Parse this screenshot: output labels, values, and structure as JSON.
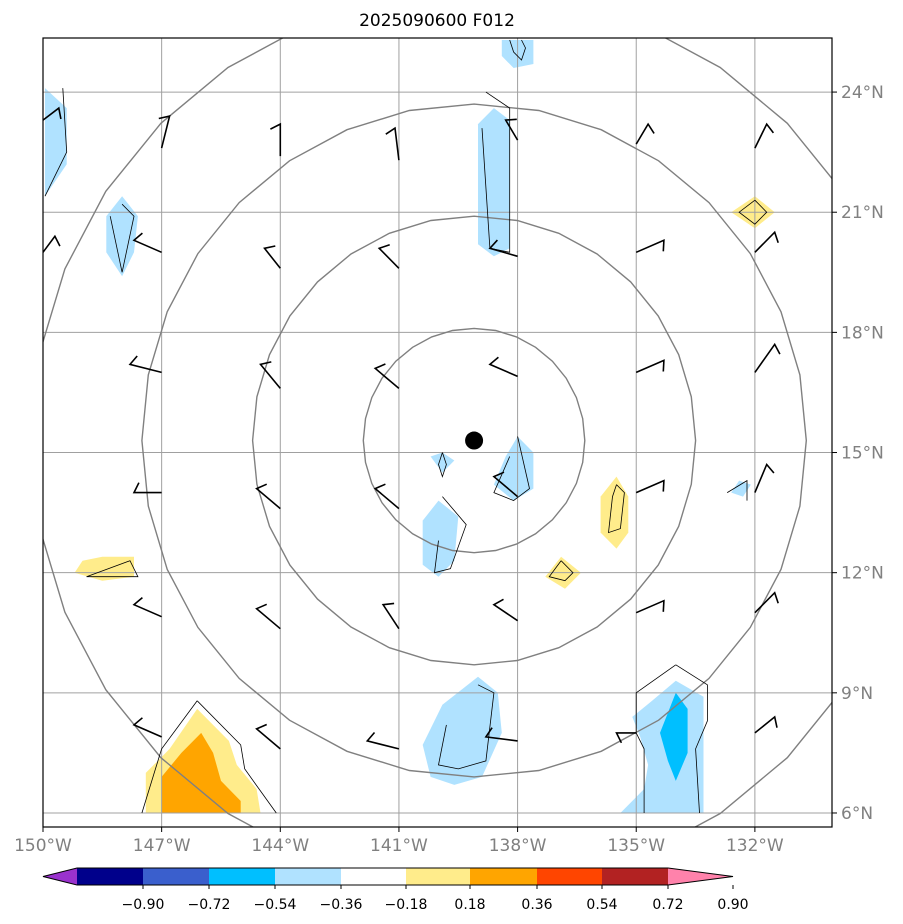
{
  "title": "2025090600 F012",
  "center_marker": {
    "lon": -139.1,
    "lat": 15.3
  },
  "x_ticks": [
    {
      "lon": -150,
      "label": "150°W"
    },
    {
      "lon": -147,
      "label": "147°W"
    },
    {
      "lon": -144,
      "label": "144°W"
    },
    {
      "lon": -141,
      "label": "141°W"
    },
    {
      "lon": -138,
      "label": "138°W"
    },
    {
      "lon": -135,
      "label": "135°W"
    },
    {
      "lon": -132,
      "label": "132°W"
    }
  ],
  "y_ticks": [
    {
      "lat": 24,
      "label": "24°N"
    },
    {
      "lat": 21,
      "label": "21°N"
    },
    {
      "lat": 18,
      "label": "18°N"
    },
    {
      "lat": 15,
      "label": "15°N"
    },
    {
      "lat": 12,
      "label": "12°N"
    },
    {
      "lat": 9,
      "label": "9°N"
    },
    {
      "lat": 6,
      "label": "6°N"
    }
  ],
  "range_rings_deg": [
    2.8,
    5.6,
    8.4,
    11.2
  ],
  "colorbar": {
    "colors": [
      "#9a32cd",
      "#00008b",
      "#3a5fcd",
      "#00bfff",
      "#b0e2ff",
      "#ffffff",
      "#ffec8b",
      "#ffa500",
      "#ff4500",
      "#b22222",
      "#ff82ab"
    ],
    "tick_labels": [
      "−0.90",
      "−0.72",
      "−0.54",
      "−0.36",
      "−0.18",
      "0.18",
      "0.36",
      "0.54",
      "0.72",
      "0.90"
    ]
  },
  "field_regions": [
    {
      "color": "#b0e2ff",
      "pts": [
        [
          -149.95,
          24.1
        ],
        [
          -149.4,
          23.6
        ],
        [
          -149.4,
          22.2
        ],
        [
          -149.95,
          21.4
        ]
      ]
    },
    {
      "color": "#b0e2ff",
      "pts": [
        [
          -148.0,
          21.4
        ],
        [
          -147.6,
          20.9
        ],
        [
          -147.7,
          20.0
        ],
        [
          -148.0,
          19.4
        ],
        [
          -148.4,
          20.0
        ],
        [
          -148.4,
          20.9
        ]
      ]
    },
    {
      "color": "#b0e2ff",
      "pts": [
        [
          -138.6,
          23.6
        ],
        [
          -138.2,
          23.3
        ],
        [
          -138.2,
          20.1
        ],
        [
          -138.6,
          19.9
        ],
        [
          -139.0,
          20.2
        ],
        [
          -139.0,
          23.2
        ]
      ]
    },
    {
      "color": "#b0e2ff",
      "pts": [
        [
          -138.4,
          25.3
        ],
        [
          -137.6,
          25.3
        ],
        [
          -137.6,
          24.7
        ],
        [
          -138.1,
          24.6
        ],
        [
          -138.4,
          24.9
        ]
      ]
    },
    {
      "color": "#b0e2ff",
      "pts": [
        [
          -140.2,
          14.9
        ],
        [
          -139.9,
          15.0
        ],
        [
          -139.6,
          14.8
        ],
        [
          -139.9,
          14.5
        ]
      ]
    },
    {
      "color": "#b0e2ff",
      "pts": [
        [
          -138.0,
          15.4
        ],
        [
          -137.6,
          15.0
        ],
        [
          -137.6,
          14.1
        ],
        [
          -138.1,
          13.8
        ],
        [
          -138.6,
          14.2
        ],
        [
          -138.3,
          14.9
        ]
      ]
    },
    {
      "color": "#b0e2ff",
      "pts": [
        [
          -140.0,
          13.8
        ],
        [
          -139.5,
          13.4
        ],
        [
          -139.6,
          12.3
        ],
        [
          -140.0,
          11.9
        ],
        [
          -140.4,
          12.2
        ],
        [
          -140.4,
          13.3
        ]
      ]
    },
    {
      "color": "#b0e2ff",
      "pts": [
        [
          -139.0,
          9.4
        ],
        [
          -138.5,
          9.0
        ],
        [
          -138.4,
          8.0
        ],
        [
          -138.9,
          6.9
        ],
        [
          -139.6,
          6.7
        ],
        [
          -140.2,
          6.9
        ],
        [
          -140.4,
          7.7
        ],
        [
          -139.9,
          8.7
        ]
      ]
    },
    {
      "color": "#b0e2ff",
      "pts": [
        [
          -132.4,
          14.3
        ],
        [
          -132.1,
          14.2
        ],
        [
          -132.3,
          13.9
        ],
        [
          -132.6,
          14.0
        ]
      ]
    },
    {
      "color": "#b0e2ff",
      "pts": [
        [
          -134.0,
          9.3
        ],
        [
          -133.3,
          8.9
        ],
        [
          -133.3,
          6.0
        ],
        [
          -135.4,
          6.0
        ],
        [
          -134.8,
          6.6
        ],
        [
          -134.7,
          7.2
        ],
        [
          -134.9,
          7.9
        ],
        [
          -135.1,
          8.4
        ],
        [
          -134.6,
          8.8
        ]
      ]
    },
    {
      "color": "#00bfff",
      "pts": [
        [
          -134.0,
          9.0
        ],
        [
          -133.7,
          8.6
        ],
        [
          -133.7,
          7.5
        ],
        [
          -134.0,
          6.8
        ],
        [
          -134.2,
          7.3
        ],
        [
          -134.4,
          8.0
        ]
      ]
    },
    {
      "color": "#ffec8b",
      "pts": [
        [
          -132.0,
          21.4
        ],
        [
          -131.5,
          21.0
        ],
        [
          -132.0,
          20.6
        ],
        [
          -132.6,
          21.0
        ]
      ]
    },
    {
      "color": "#ffec8b",
      "pts": [
        [
          -135.5,
          14.4
        ],
        [
          -135.2,
          13.9
        ],
        [
          -135.2,
          13.0
        ],
        [
          -135.5,
          12.6
        ],
        [
          -135.9,
          13.0
        ],
        [
          -135.9,
          13.9
        ]
      ]
    },
    {
      "color": "#ffec8b",
      "pts": [
        [
          -136.9,
          12.4
        ],
        [
          -136.4,
          12.0
        ],
        [
          -136.8,
          11.6
        ],
        [
          -137.3,
          11.9
        ]
      ]
    },
    {
      "color": "#ffec8b",
      "pts": [
        [
          -148.5,
          12.4
        ],
        [
          -147.7,
          12.4
        ],
        [
          -147.7,
          11.9
        ],
        [
          -148.5,
          11.8
        ],
        [
          -149.2,
          12.0
        ],
        [
          -149.0,
          12.3
        ]
      ]
    },
    {
      "color": "#ffec8b",
      "pts": [
        [
          -146.1,
          8.6
        ],
        [
          -145.3,
          7.8
        ],
        [
          -145.1,
          7.2
        ],
        [
          -144.6,
          6.6
        ],
        [
          -144.5,
          6.0
        ],
        [
          -147.4,
          6.0
        ],
        [
          -147.4,
          7.0
        ],
        [
          -146.8,
          7.6
        ]
      ]
    },
    {
      "color": "#ffa500",
      "pts": [
        [
          -146.0,
          8.0
        ],
        [
          -145.7,
          7.5
        ],
        [
          -145.5,
          6.8
        ],
        [
          -145.0,
          6.3
        ],
        [
          -145.0,
          6.0
        ],
        [
          -147.0,
          6.0
        ],
        [
          -147.0,
          6.9
        ],
        [
          -146.5,
          7.5
        ]
      ]
    }
  ],
  "contour_lines": [
    [
      [
        -149.5,
        24.1
      ],
      [
        -149.4,
        22.5
      ],
      [
        -149.95,
        21.4
      ]
    ],
    [
      [
        -148.0,
        21.2
      ],
      [
        -147.7,
        20.9
      ],
      [
        -148.0,
        19.5
      ],
      [
        -148.3,
        20.9
      ]
    ],
    [
      [
        -138.8,
        24.0
      ],
      [
        -138.2,
        23.6
      ],
      [
        -138.2,
        20.0
      ],
      [
        -138.7,
        20.1
      ],
      [
        -138.9,
        23.1
      ]
    ],
    [
      [
        -137.9,
        25.3
      ],
      [
        -137.8,
        25.1
      ],
      [
        -137.9,
        24.8
      ],
      [
        -138.1,
        25.0
      ],
      [
        -138.2,
        25.3
      ]
    ],
    [
      [
        -139.9,
        15.0
      ],
      [
        -139.8,
        14.7
      ],
      [
        -139.9,
        14.4
      ],
      [
        -140.0,
        14.7
      ],
      [
        -139.9,
        15.0
      ]
    ],
    [
      [
        -138.0,
        15.4
      ],
      [
        -137.7,
        14.1
      ],
      [
        -138.1,
        13.8
      ],
      [
        -138.6,
        14.0
      ],
      [
        -138.2,
        14.9
      ]
    ],
    [
      [
        -139.9,
        13.9
      ],
      [
        -139.3,
        13.2
      ],
      [
        -139.7,
        12.1
      ],
      [
        -140.1,
        12.0
      ],
      [
        -140.0,
        12.8
      ]
    ],
    [
      [
        -139.0,
        9.2
      ],
      [
        -138.6,
        9.0
      ],
      [
        -138.8,
        7.3
      ],
      [
        -139.5,
        7.1
      ],
      [
        -140.0,
        7.2
      ],
      [
        -139.8,
        8.2
      ]
    ],
    [
      [
        -132.7,
        14.0
      ],
      [
        -132.2,
        14.3
      ],
      [
        -132.2,
        13.8
      ]
    ],
    [
      [
        -134.0,
        9.7
      ],
      [
        -133.2,
        9.2
      ],
      [
        -133.2,
        8.3
      ],
      [
        -133.5,
        7.6
      ],
      [
        -133.4,
        6.0
      ]
    ],
    [
      [
        -134.0,
        9.7
      ],
      [
        -135.0,
        9.0
      ],
      [
        -135.0,
        8.0
      ],
      [
        -134.8,
        7.6
      ],
      [
        -134.8,
        6.0
      ]
    ],
    [
      [
        -132.0,
        21.3
      ],
      [
        -131.7,
        21.0
      ],
      [
        -132.0,
        20.7
      ],
      [
        -132.4,
        21.0
      ],
      [
        -132.0,
        21.3
      ]
    ],
    [
      [
        -135.5,
        14.2
      ],
      [
        -135.3,
        14.0
      ],
      [
        -135.4,
        13.1
      ],
      [
        -135.7,
        13.0
      ],
      [
        -135.6,
        13.9
      ],
      [
        -135.5,
        14.2
      ]
    ],
    [
      [
        -136.9,
        12.3
      ],
      [
        -136.6,
        12.0
      ],
      [
        -136.8,
        11.8
      ],
      [
        -137.2,
        11.9
      ],
      [
        -136.9,
        12.3
      ]
    ],
    [
      [
        -148.9,
        11.9
      ],
      [
        -147.8,
        12.3
      ],
      [
        -147.6,
        11.9
      ],
      [
        -148.9,
        11.9
      ]
    ],
    [
      [
        -146.1,
        8.8
      ],
      [
        -145.0,
        7.7
      ],
      [
        -144.9,
        7.1
      ],
      [
        -144.1,
        6.0
      ]
    ],
    [
      [
        -146.1,
        8.8
      ],
      [
        -147.0,
        7.6
      ],
      [
        -147.5,
        6.0
      ]
    ]
  ],
  "wind_barbs": [
    {
      "lon": -150.0,
      "lat": 23.3,
      "dx": 0.4,
      "dy": 0.3,
      "side": 1
    },
    {
      "lon": -147.0,
      "lat": 22.6,
      "dx": 0.2,
      "dy": 0.8,
      "side": -1
    },
    {
      "lon": -144.0,
      "lat": 22.4,
      "dx": 0.0,
      "dy": 0.8,
      "side": -1
    },
    {
      "lon": -141.0,
      "lat": 22.3,
      "dx": -0.1,
      "dy": 0.8,
      "side": -1
    },
    {
      "lon": -138.0,
      "lat": 22.8,
      "dx": -0.3,
      "dy": 0.5,
      "side": 1
    },
    {
      "lon": -135.0,
      "lat": 22.7,
      "dx": 0.3,
      "dy": 0.5,
      "side": 1
    },
    {
      "lon": -132.0,
      "lat": 22.6,
      "dx": 0.3,
      "dy": 0.6,
      "side": 1
    },
    {
      "lon": -150.0,
      "lat": 20.0,
      "dx": 0.3,
      "dy": 0.4,
      "side": 1
    },
    {
      "lon": -147.0,
      "lat": 20.0,
      "dx": -0.7,
      "dy": 0.3,
      "side": 1
    },
    {
      "lon": -144.0,
      "lat": 19.6,
      "dx": -0.4,
      "dy": 0.5,
      "side": 1
    },
    {
      "lon": -141.0,
      "lat": 19.6,
      "dx": -0.5,
      "dy": 0.5,
      "side": 1
    },
    {
      "lon": -138.0,
      "lat": 19.9,
      "dx": -0.7,
      "dy": 0.2,
      "side": 1
    },
    {
      "lon": -135.0,
      "lat": 20.0,
      "dx": 0.7,
      "dy": 0.3,
      "side": 1
    },
    {
      "lon": -132.0,
      "lat": 20.0,
      "dx": 0.5,
      "dy": 0.5,
      "side": 1
    },
    {
      "lon": -150.0,
      "lat": 17.0,
      "dx": -0.5,
      "dy": 0.0,
      "side": 1
    },
    {
      "lon": -147.0,
      "lat": 17.0,
      "dx": -0.8,
      "dy": 0.2,
      "side": 1
    },
    {
      "lon": -144.0,
      "lat": 16.6,
      "dx": -0.5,
      "dy": 0.6,
      "side": 1
    },
    {
      "lon": -141.0,
      "lat": 16.6,
      "dx": -0.6,
      "dy": 0.5,
      "side": 1
    },
    {
      "lon": -138.0,
      "lat": 16.9,
      "dx": -0.7,
      "dy": 0.3,
      "side": 1
    },
    {
      "lon": -135.0,
      "lat": 17.0,
      "dx": 0.7,
      "dy": 0.3,
      "side": 1
    },
    {
      "lon": -132.0,
      "lat": 17.0,
      "dx": 0.5,
      "dy": 0.7,
      "side": 1
    },
    {
      "lon": -150.0,
      "lat": 14.0,
      "dx": -0.5,
      "dy": 0.0,
      "side": 1
    },
    {
      "lon": -147.0,
      "lat": 14.0,
      "dx": -0.7,
      "dy": 0.0,
      "side": 1
    },
    {
      "lon": -144.0,
      "lat": 13.6,
      "dx": -0.6,
      "dy": 0.5,
      "side": 1
    },
    {
      "lon": -141.0,
      "lat": 13.6,
      "dx": -0.6,
      "dy": 0.5,
      "side": 1
    },
    {
      "lon": -138.0,
      "lat": 13.9,
      "dx": -0.6,
      "dy": 0.5,
      "side": 1
    },
    {
      "lon": -135.0,
      "lat": 14.0,
      "dx": 0.7,
      "dy": 0.3,
      "side": 1
    },
    {
      "lon": -132.0,
      "lat": 14.0,
      "dx": 0.3,
      "dy": 0.7,
      "side": 1
    },
    {
      "lon": -150.0,
      "lat": 11.0,
      "dx": -0.5,
      "dy": 0.0,
      "side": 1
    },
    {
      "lon": -147.0,
      "lat": 10.9,
      "dx": -0.7,
      "dy": 0.3,
      "side": 1
    },
    {
      "lon": -144.0,
      "lat": 10.6,
      "dx": -0.6,
      "dy": 0.5,
      "side": 1
    },
    {
      "lon": -141.0,
      "lat": 10.6,
      "dx": -0.4,
      "dy": 0.6,
      "side": 1
    },
    {
      "lon": -138.0,
      "lat": 10.8,
      "dx": -0.6,
      "dy": 0.4,
      "side": 1
    },
    {
      "lon": -135.0,
      "lat": 11.0,
      "dx": 0.7,
      "dy": 0.3,
      "side": 1
    },
    {
      "lon": -132.0,
      "lat": 11.0,
      "dx": 0.5,
      "dy": 0.5,
      "side": 1
    },
    {
      "lon": -150.0,
      "lat": 8.0,
      "dx": -0.5,
      "dy": 0.0,
      "side": 1
    },
    {
      "lon": -147.0,
      "lat": 7.9,
      "dx": -0.7,
      "dy": 0.3,
      "side": 1
    },
    {
      "lon": -144.0,
      "lat": 7.6,
      "dx": -0.6,
      "dy": 0.5,
      "side": 1
    },
    {
      "lon": -141.0,
      "lat": 7.6,
      "dx": -0.8,
      "dy": 0.2,
      "side": 1
    },
    {
      "lon": -138.0,
      "lat": 7.8,
      "dx": -0.8,
      "dy": 0.1,
      "side": 1
    },
    {
      "lon": -135.0,
      "lat": 8.0,
      "dx": -0.5,
      "dy": 0.0,
      "side": -1
    },
    {
      "lon": -132.0,
      "lat": 8.0,
      "dx": 0.5,
      "dy": 0.4,
      "side": 1
    }
  ]
}
